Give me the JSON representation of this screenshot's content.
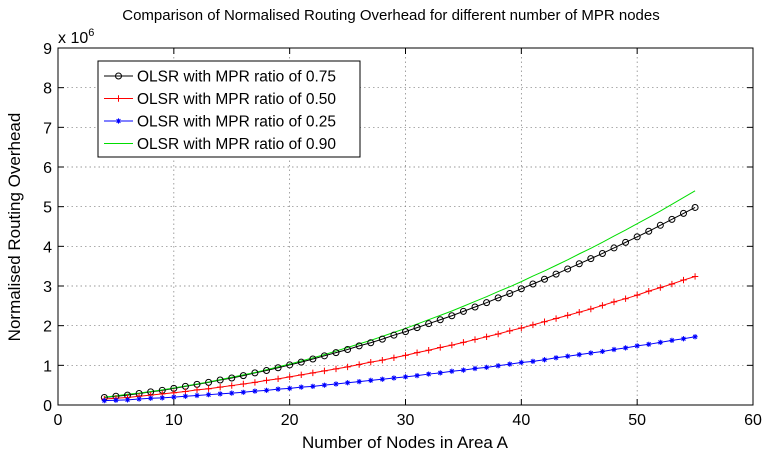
{
  "chart_data": {
    "type": "line",
    "title": "Comparison of Normalised Routing Overhead for different number of MPR nodes",
    "xlabel": "Number of Nodes in Area A",
    "ylabel": "Normalised Routing Overhead",
    "y_multiplier": "x 10",
    "y_multiplier_exp": "6",
    "xlim": [
      0,
      60
    ],
    "ylim": [
      0,
      9
    ],
    "xticks": [
      0,
      10,
      20,
      30,
      40,
      50,
      60
    ],
    "yticks": [
      0,
      1,
      2,
      3,
      4,
      5,
      6,
      7,
      8,
      9
    ],
    "grid": true,
    "legend_position": "top-left",
    "x": [
      4,
      5,
      6,
      7,
      8,
      9,
      10,
      11,
      12,
      13,
      14,
      15,
      16,
      17,
      18,
      19,
      20,
      21,
      22,
      23,
      24,
      25,
      26,
      27,
      28,
      29,
      30,
      31,
      32,
      33,
      34,
      35,
      36,
      37,
      38,
      39,
      40,
      41,
      42,
      43,
      44,
      45,
      46,
      47,
      48,
      49,
      50,
      51,
      52,
      53,
      54,
      55
    ],
    "series": [
      {
        "name": "OLSR with MPR ratio of 0.75",
        "color": "#000000",
        "marker": "circle",
        "values": [
          0.19,
          0.22,
          0.25,
          0.29,
          0.33,
          0.37,
          0.42,
          0.47,
          0.52,
          0.57,
          0.63,
          0.68,
          0.74,
          0.81,
          0.87,
          0.94,
          1.01,
          1.08,
          1.16,
          1.24,
          1.32,
          1.4,
          1.49,
          1.57,
          1.66,
          1.76,
          1.85,
          1.95,
          2.05,
          2.15,
          2.25,
          2.36,
          2.47,
          2.58,
          2.7,
          2.81,
          2.93,
          3.05,
          3.17,
          3.3,
          3.43,
          3.56,
          3.69,
          3.82,
          3.96,
          4.1,
          4.24,
          4.38,
          4.53,
          4.68,
          4.83,
          4.98
        ]
      },
      {
        "name": "OLSR with MPR ratio of 0.50",
        "color": "#ff0000",
        "marker": "plus",
        "values": [
          0.15,
          0.17,
          0.19,
          0.22,
          0.25,
          0.28,
          0.31,
          0.34,
          0.38,
          0.41,
          0.45,
          0.49,
          0.53,
          0.57,
          0.62,
          0.66,
          0.71,
          0.76,
          0.81,
          0.86,
          0.91,
          0.96,
          1.02,
          1.08,
          1.13,
          1.19,
          1.25,
          1.32,
          1.38,
          1.45,
          1.51,
          1.58,
          1.65,
          1.72,
          1.79,
          1.87,
          1.94,
          2.02,
          2.1,
          2.18,
          2.26,
          2.34,
          2.42,
          2.51,
          2.6,
          2.68,
          2.77,
          2.87,
          2.96,
          3.05,
          3.15,
          3.24
        ]
      },
      {
        "name": "OLSR with MPR ratio of 0.25",
        "color": "#0000ff",
        "marker": "star",
        "values": [
          0.11,
          0.12,
          0.13,
          0.15,
          0.17,
          0.18,
          0.2,
          0.22,
          0.24,
          0.26,
          0.28,
          0.3,
          0.32,
          0.35,
          0.37,
          0.4,
          0.42,
          0.45,
          0.47,
          0.5,
          0.53,
          0.56,
          0.59,
          0.62,
          0.65,
          0.68,
          0.71,
          0.74,
          0.78,
          0.81,
          0.85,
          0.88,
          0.92,
          0.95,
          0.99,
          1.03,
          1.07,
          1.1,
          1.14,
          1.19,
          1.23,
          1.27,
          1.31,
          1.35,
          1.4,
          1.44,
          1.49,
          1.53,
          1.58,
          1.63,
          1.67,
          1.72
        ]
      },
      {
        "name": "OLSR with MPR ratio of 0.90",
        "color": "#00dd00",
        "marker": "none",
        "values": [
          0.2,
          0.23,
          0.27,
          0.3,
          0.34,
          0.38,
          0.43,
          0.48,
          0.53,
          0.58,
          0.64,
          0.7,
          0.76,
          0.82,
          0.89,
          0.96,
          1.03,
          1.11,
          1.19,
          1.27,
          1.36,
          1.45,
          1.54,
          1.63,
          1.73,
          1.83,
          1.93,
          2.04,
          2.15,
          2.26,
          2.37,
          2.49,
          2.61,
          2.73,
          2.86,
          2.98,
          3.11,
          3.25,
          3.38,
          3.52,
          3.66,
          3.81,
          3.95,
          4.1,
          4.26,
          4.41,
          4.57,
          4.73,
          4.89,
          5.06,
          5.23,
          5.4
        ]
      }
    ]
  }
}
